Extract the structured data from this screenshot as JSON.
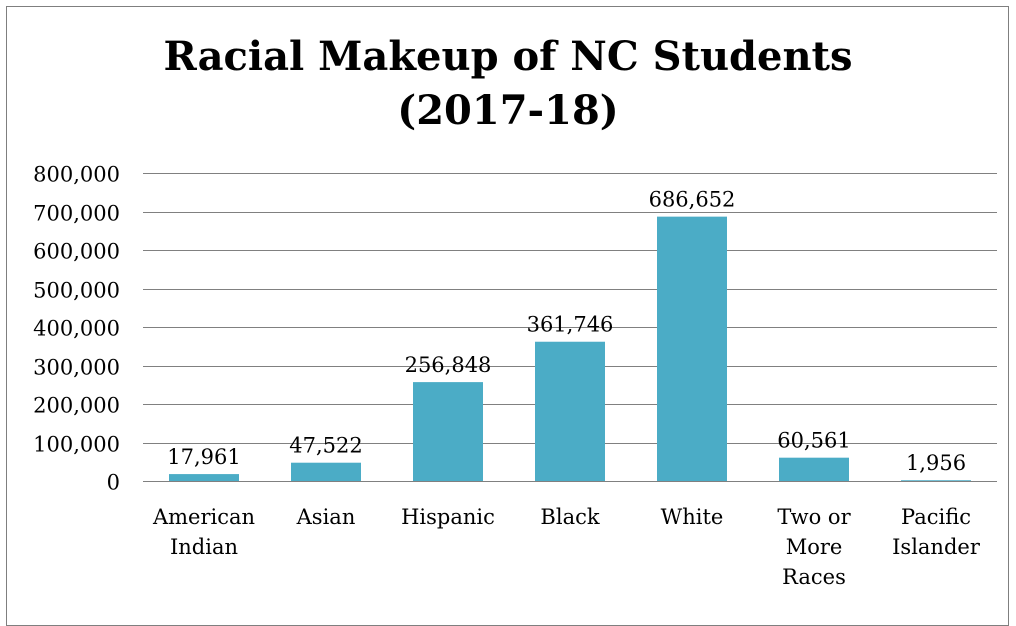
{
  "chart_data": {
    "type": "bar",
    "title_line1": "Racial Makeup of NC Students",
    "title_line2": "(2017-18)",
    "categories": [
      [
        "American",
        "Indian"
      ],
      [
        "Asian"
      ],
      [
        "Hispanic"
      ],
      [
        "Black"
      ],
      [
        "White"
      ],
      [
        "Two or",
        "More",
        "Races"
      ],
      [
        "Pacific",
        "Islander"
      ]
    ],
    "values": [
      17961,
      47522,
      256848,
      361746,
      686652,
      60561,
      1956
    ],
    "data_labels": [
      "17,961",
      "47,522",
      "256,848",
      "361,746",
      "686,652",
      "60,561",
      "1,956"
    ],
    "ylim": [
      0,
      800000
    ],
    "yticks": [
      0,
      100000,
      200000,
      300000,
      400000,
      500000,
      600000,
      700000,
      800000
    ],
    "ytick_labels": [
      "0",
      "100,000",
      "200,000",
      "300,000",
      "400,000",
      "500,000",
      "600,000",
      "700,000",
      "800,000"
    ],
    "grid": true,
    "legend": "none",
    "colors": {
      "bar": "#4BACC6",
      "grid": "#808080",
      "frame": "#7F7F7F"
    }
  }
}
